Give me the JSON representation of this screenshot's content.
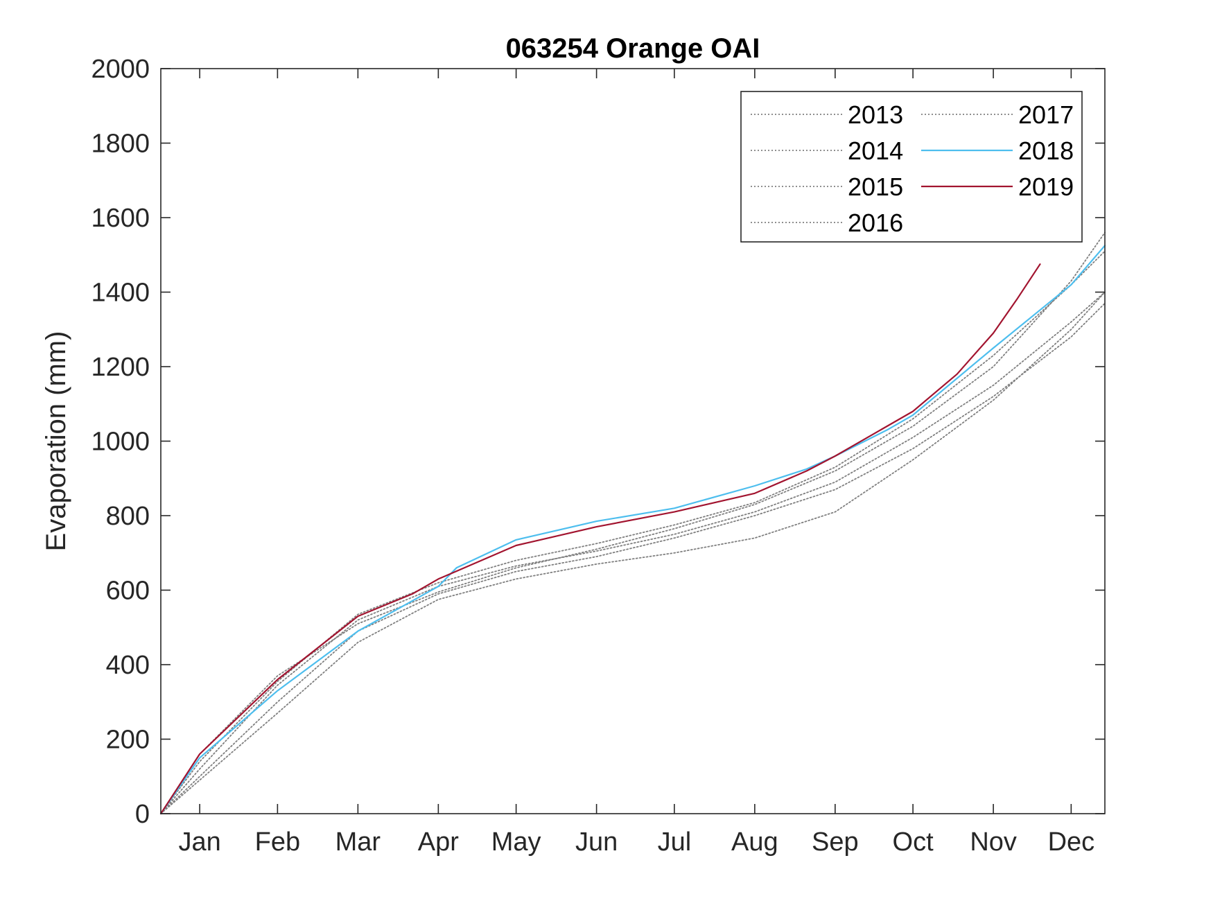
{
  "chart_data": {
    "type": "line",
    "title": "063254 Orange OAI",
    "xlabel": "",
    "ylabel": "Evaporation (mm)",
    "ylim": [
      0,
      2000
    ],
    "yticks": [
      0,
      200,
      400,
      600,
      800,
      1000,
      1200,
      1400,
      1600,
      1800,
      2000
    ],
    "xlim": [
      1,
      365
    ],
    "month_ticks": [
      {
        "label": "Jan",
        "day": 16
      },
      {
        "label": "Feb",
        "day": 46
      },
      {
        "label": "Mar",
        "day": 77
      },
      {
        "label": "Apr",
        "day": 108
      },
      {
        "label": "May",
        "day": 138
      },
      {
        "label": "Jun",
        "day": 169
      },
      {
        "label": "Jul",
        "day": 199
      },
      {
        "label": "Aug",
        "day": 230
      },
      {
        "label": "Sep",
        "day": 261
      },
      {
        "label": "Oct",
        "day": 291
      },
      {
        "label": "Nov",
        "day": 322
      },
      {
        "label": "Dec",
        "day": 352
      }
    ],
    "grid": false,
    "legend_position": "top-right",
    "legend_columns": 2,
    "series": [
      {
        "name": "2013",
        "style": "dotted",
        "color": "#7f7f7f",
        "points": [
          [
            1,
            0
          ],
          [
            16,
            120
          ],
          [
            46,
            345
          ],
          [
            77,
            520
          ],
          [
            108,
            610
          ],
          [
            138,
            665
          ],
          [
            169,
            705
          ],
          [
            199,
            750
          ],
          [
            230,
            810
          ],
          [
            261,
            890
          ],
          [
            291,
            1010
          ],
          [
            322,
            1150
          ],
          [
            352,
            1320
          ],
          [
            365,
            1400
          ]
        ]
      },
      {
        "name": "2014",
        "style": "dotted",
        "color": "#7f7f7f",
        "points": [
          [
            1,
            0
          ],
          [
            16,
            100
          ],
          [
            46,
            300
          ],
          [
            77,
            490
          ],
          [
            108,
            590
          ],
          [
            138,
            650
          ],
          [
            169,
            690
          ],
          [
            199,
            740
          ],
          [
            230,
            800
          ],
          [
            261,
            870
          ],
          [
            291,
            980
          ],
          [
            322,
            1120
          ],
          [
            352,
            1280
          ],
          [
            365,
            1370
          ]
        ]
      },
      {
        "name": "2015",
        "style": "dotted",
        "color": "#7f7f7f",
        "points": [
          [
            1,
            0
          ],
          [
            16,
            140
          ],
          [
            46,
            355
          ],
          [
            77,
            535
          ],
          [
            108,
            620
          ],
          [
            138,
            680
          ],
          [
            169,
            725
          ],
          [
            199,
            775
          ],
          [
            230,
            835
          ],
          [
            261,
            930
          ],
          [
            291,
            1060
          ],
          [
            322,
            1230
          ],
          [
            352,
            1420
          ],
          [
            365,
            1510
          ]
        ]
      },
      {
        "name": "2016",
        "style": "dotted",
        "color": "#7f7f7f",
        "points": [
          [
            1,
            0
          ],
          [
            16,
            90
          ],
          [
            46,
            270
          ],
          [
            77,
            460
          ],
          [
            108,
            575
          ],
          [
            138,
            630
          ],
          [
            169,
            670
          ],
          [
            199,
            700
          ],
          [
            230,
            740
          ],
          [
            261,
            810
          ],
          [
            291,
            950
          ],
          [
            322,
            1110
          ],
          [
            352,
            1300
          ],
          [
            365,
            1400
          ]
        ]
      },
      {
        "name": "2017",
        "style": "dotted",
        "color": "#7f7f7f",
        "points": [
          [
            1,
            0
          ],
          [
            16,
            160
          ],
          [
            46,
            370
          ],
          [
            77,
            510
          ],
          [
            108,
            595
          ],
          [
            138,
            660
          ],
          [
            169,
            710
          ],
          [
            199,
            765
          ],
          [
            230,
            830
          ],
          [
            261,
            920
          ],
          [
            291,
            1040
          ],
          [
            322,
            1200
          ],
          [
            352,
            1430
          ],
          [
            365,
            1560
          ]
        ]
      },
      {
        "name": "2018",
        "style": "solid",
        "color": "#4dbeee",
        "points": [
          [
            1,
            0
          ],
          [
            16,
            150
          ],
          [
            46,
            330
          ],
          [
            77,
            490
          ],
          [
            108,
            610
          ],
          [
            115,
            660
          ],
          [
            138,
            735
          ],
          [
            169,
            785
          ],
          [
            199,
            820
          ],
          [
            230,
            880
          ],
          [
            250,
            925
          ],
          [
            261,
            960
          ],
          [
            281,
            1030
          ],
          [
            291,
            1070
          ],
          [
            322,
            1250
          ],
          [
            352,
            1420
          ],
          [
            365,
            1525
          ]
        ]
      },
      {
        "name": "2019",
        "style": "solid",
        "color": "#a2142f",
        "points": [
          [
            1,
            0
          ],
          [
            16,
            160
          ],
          [
            46,
            360
          ],
          [
            77,
            530
          ],
          [
            98,
            590
          ],
          [
            108,
            630
          ],
          [
            138,
            720
          ],
          [
            169,
            770
          ],
          [
            199,
            810
          ],
          [
            230,
            860
          ],
          [
            250,
            920
          ],
          [
            261,
            960
          ],
          [
            281,
            1040
          ],
          [
            291,
            1080
          ],
          [
            308,
            1180
          ],
          [
            322,
            1290
          ],
          [
            331,
            1380
          ],
          [
            340,
            1475
          ]
        ]
      }
    ]
  }
}
